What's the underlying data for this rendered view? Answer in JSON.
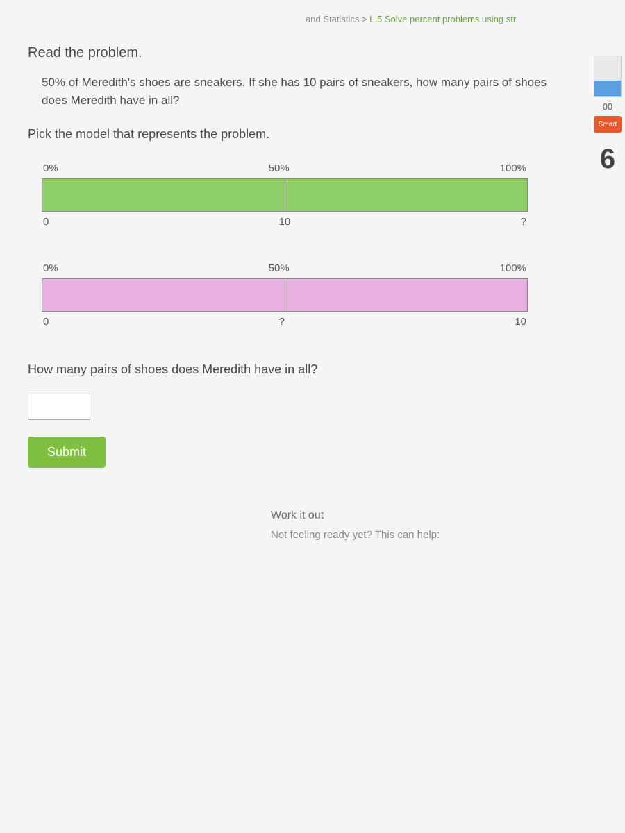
{
  "breadcrumb": {
    "category": "and Statistics",
    "separator": ">",
    "skill": "L.5 Solve percent problems using str"
  },
  "heading_read": "Read the problem.",
  "problem_text": "50% of Meredith's shoes are sneakers. If she has 10 pairs of sneakers, how many pairs of shoes does Meredith have in all?",
  "instruction": "Pick the model that represents the problem.",
  "models": [
    {
      "top_labels": [
        "0%",
        "50%",
        "100%"
      ],
      "bottom_labels": [
        "0",
        "10",
        "?"
      ],
      "fill": "green",
      "segments": 2,
      "filled_segments": 2
    },
    {
      "top_labels": [
        "0%",
        "50%",
        "100%"
      ],
      "bottom_labels": [
        "0",
        "?",
        "10"
      ],
      "fill": "pink",
      "segments": 2,
      "filled_segments": 2
    }
  ],
  "question": "How many pairs of shoes does Meredith have in all?",
  "answer_value": "",
  "submit_label": "Submit",
  "footer": {
    "work_it_out": "Work it out",
    "not_ready": "Not feeling ready yet? This can help:"
  },
  "sidebar": {
    "score": "00",
    "smart_label": "Smart",
    "questions": "6"
  },
  "colors": {
    "green_fill": "#8fcf6a",
    "pink_fill": "#e7b0e0",
    "submit_bg": "#7fbf3f",
    "text": "#4a4a4a"
  }
}
